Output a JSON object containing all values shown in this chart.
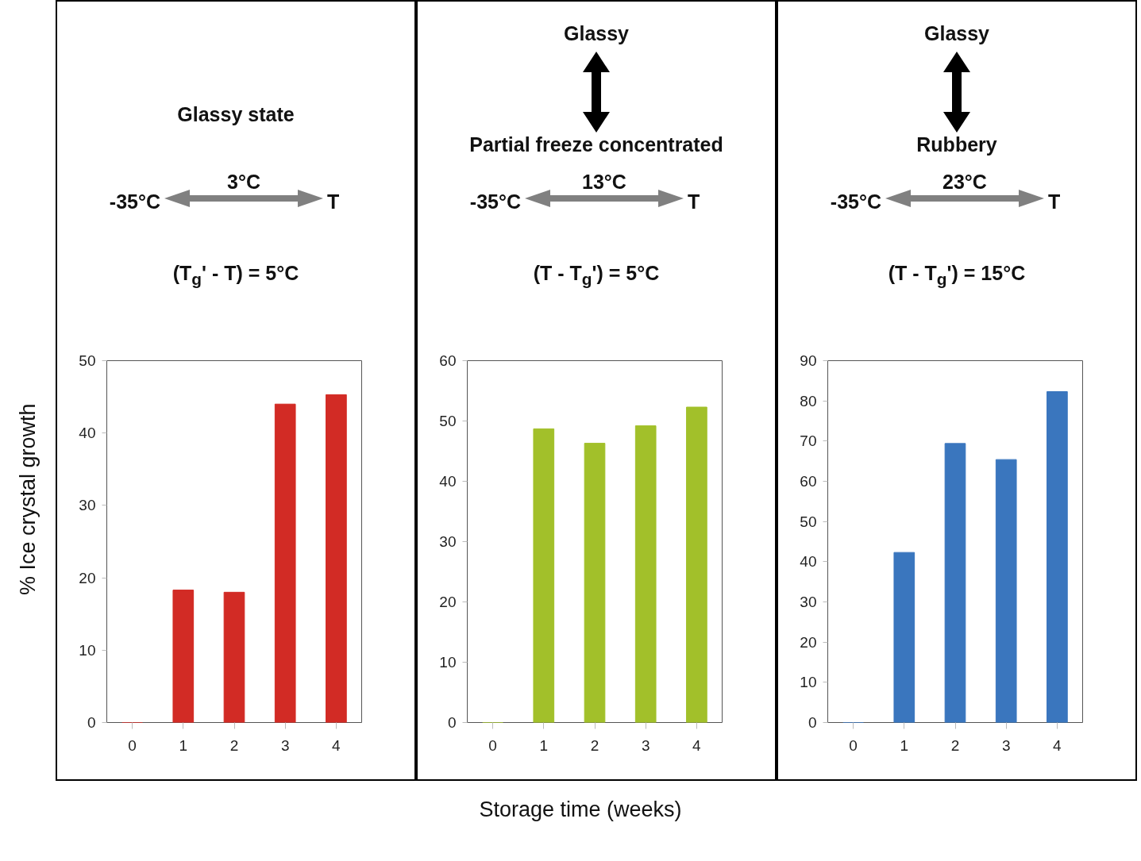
{
  "chart_data": [
    {
      "type": "bar",
      "ylabel": "% Ice crystal growth",
      "categories": [
        "0",
        "1",
        "2",
        "3",
        "4"
      ],
      "values": [
        0,
        18.3,
        18.0,
        44,
        45.3
      ],
      "color": "#d22b25",
      "ylim": [
        0,
        50
      ],
      "yticks": [
        0,
        10,
        20,
        30,
        40,
        50
      ],
      "grid": false,
      "annotations": [
        "Glassy state",
        "3°C",
        "-35°C",
        "T",
        "(T$_{g}$' - T) = 5°C"
      ]
    },
    {
      "type": "bar",
      "xlabel": "Storage time (weeks)",
      "categories": [
        "0",
        "1",
        "2",
        "3",
        "4"
      ],
      "values": [
        0,
        48.7,
        46.3,
        49.2,
        52.3
      ],
      "color": "#a2c02a",
      "ylim": [
        0,
        60
      ],
      "yticks": [
        0,
        10,
        20,
        30,
        40,
        50,
        60
      ],
      "grid": false,
      "annotations": [
        "Glassy",
        "Partial freeze concentrated",
        "13°C",
        "-35°C",
        "T",
        "(T - T$_{g}$') = 5°C"
      ]
    },
    {
      "type": "bar",
      "categories": [
        "0",
        "1",
        "2",
        "3",
        "4"
      ],
      "values": [
        0,
        42.3,
        69.4,
        65.4,
        82.3
      ],
      "color": "#3a76be",
      "ylim": [
        0,
        90
      ],
      "yticks": [
        0,
        10,
        20,
        30,
        40,
        50,
        60,
        70,
        80,
        90
      ],
      "grid": false,
      "annotations": [
        "Glassy",
        "Rubbery",
        "23°C",
        "-35°C",
        "T",
        "(T - T$_{g}$') = 15°C"
      ]
    }
  ]
}
